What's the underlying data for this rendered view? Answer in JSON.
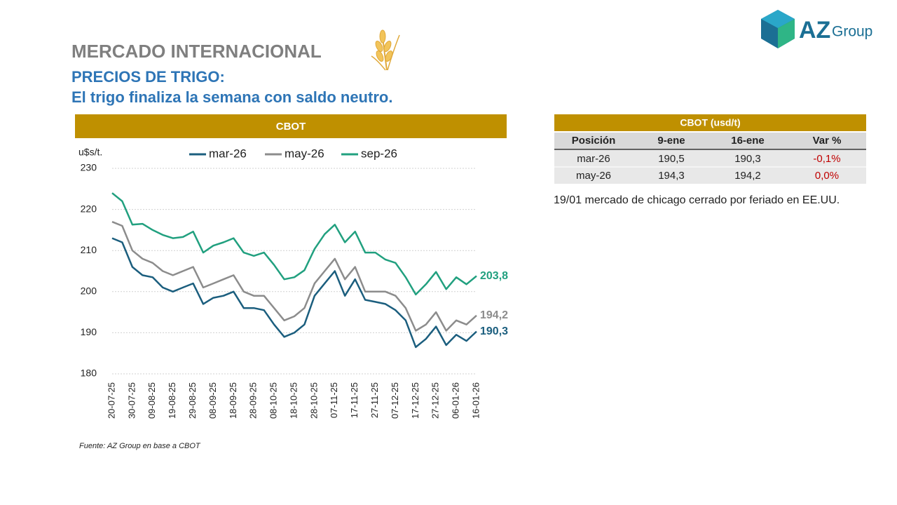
{
  "header": {
    "title": "MERCADO INTERNACIONAL",
    "subtitle": "PRECIOS DE TRIGO:",
    "headline": "El trigo finaliza la semana con saldo neutro."
  },
  "logo": {
    "brand": "AZ",
    "suffix": "Group"
  },
  "chart_data": {
    "type": "line",
    "title": "CBOT",
    "y_label": "u$s/t.",
    "source": "Fuente: AZ Group en base a CBOT",
    "categories": [
      "20-07-25",
      null,
      "30-07-25",
      null,
      "09-08-25",
      null,
      "19-08-25",
      null,
      "29-08-25",
      null,
      "08-09-25",
      null,
      "18-09-25",
      null,
      "28-09-25",
      null,
      "08-10-25",
      null,
      "18-10-25",
      null,
      "28-10-25",
      null,
      "07-11-25",
      null,
      "17-11-25",
      null,
      "27-11-25",
      null,
      "07-12-25",
      null,
      "17-12-25",
      null,
      "27-12-25",
      null,
      "06-01-26",
      null,
      "16-01-26"
    ],
    "series": [
      {
        "name": "mar-26",
        "color": "#1b5e7e",
        "values": [
          213,
          212,
          206,
          204,
          203.5,
          201,
          200,
          201,
          202,
          197,
          198.5,
          199,
          200,
          196,
          196,
          195.5,
          192,
          189,
          190,
          192,
          199,
          202,
          205,
          199,
          203,
          198,
          197.5,
          197,
          195.5,
          193,
          186.5,
          188.5,
          191.5,
          187,
          189.5,
          188,
          190.3
        ],
        "value_labels": [
          null,
          null,
          null,
          null,
          null,
          null,
          null,
          null,
          null,
          null,
          null,
          null,
          null,
          null,
          null,
          null,
          null,
          null,
          null,
          null,
          null,
          null,
          null,
          null,
          null,
          null,
          null,
          null,
          null,
          null,
          null,
          null,
          null,
          null,
          null,
          null,
          "190,3"
        ]
      },
      {
        "name": "may-26",
        "color": "#8c8c8c",
        "values": [
          217,
          216,
          210,
          208,
          207,
          205,
          204,
          205,
          206,
          201,
          202,
          203,
          204,
          200,
          199,
          199,
          196,
          193,
          194,
          196,
          202,
          205,
          208,
          203,
          206,
          200,
          200,
          200,
          199,
          196,
          190.5,
          192,
          195,
          190.5,
          193,
          192,
          194.2
        ],
        "value_labels": [
          null,
          null,
          null,
          null,
          null,
          null,
          null,
          null,
          null,
          null,
          null,
          null,
          null,
          null,
          null,
          null,
          null,
          null,
          null,
          null,
          null,
          null,
          null,
          null,
          null,
          null,
          null,
          null,
          null,
          null,
          null,
          null,
          null,
          null,
          null,
          null,
          "194,2"
        ]
      },
      {
        "name": "sep-26",
        "color": "#21a07f",
        "values": [
          224,
          222,
          216.3,
          216.5,
          215,
          213.8,
          213,
          213.3,
          214.6,
          209.5,
          211.2,
          212,
          213,
          209.5,
          208.7,
          209.5,
          206.5,
          203,
          203.5,
          205.2,
          210.4,
          214,
          216.3,
          212,
          214.6,
          209.5,
          209.5,
          207.8,
          207,
          203.5,
          199.3,
          201.8,
          204.8,
          200.6,
          203.5,
          201.8,
          203.8
        ],
        "value_labels": [
          null,
          null,
          null,
          null,
          null,
          null,
          null,
          null,
          null,
          null,
          null,
          null,
          null,
          null,
          null,
          null,
          null,
          null,
          null,
          null,
          null,
          null,
          null,
          null,
          null,
          null,
          null,
          null,
          null,
          null,
          null,
          null,
          null,
          null,
          null,
          null,
          "203,8"
        ]
      }
    ],
    "ylim": [
      180,
      230
    ],
    "yticks": [
      180,
      190,
      200,
      210,
      220,
      230
    ],
    "grid": true,
    "legend": "top"
  },
  "table": {
    "title": "CBOT (usd/t)",
    "columns": [
      "Posición",
      "9-ene",
      "16-ene",
      "Var %"
    ],
    "rows": [
      [
        "mar-26",
        "190,5",
        "190,3",
        "-0,1%"
      ],
      [
        "may-26",
        "194,3",
        "194,2",
        "0,0%"
      ]
    ],
    "highlight_column": 3,
    "highlight_color": "#c00000"
  },
  "note": "19/01 mercado de chicago cerrado por feriado en EE.UU."
}
